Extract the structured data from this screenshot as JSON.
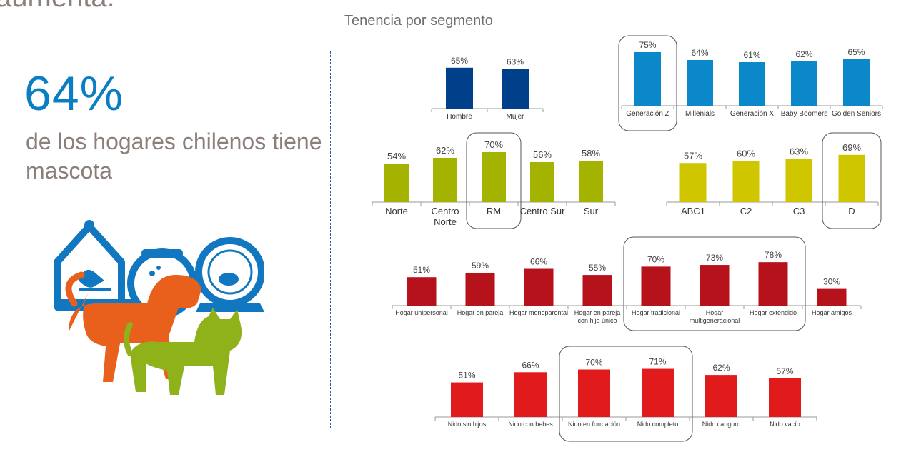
{
  "left_panel": {
    "header_fragment": "aumenta.",
    "stat_value": "64%",
    "stat_caption": "de los hogares chilenos tiene mascota",
    "illustration": "pets-illustration"
  },
  "chart_title": "Tenencia por segmento",
  "colors": {
    "gender": "#003f8a",
    "generation": "#0a88c9",
    "region": "#a4b300",
    "socioeconomic": "#cfc600",
    "household": "#b5121b",
    "nest": "#e11b1b",
    "highlight_border": "#555555"
  },
  "chart_data": [
    {
      "type": "bar",
      "id": "gender",
      "categories": [
        "Hombre",
        "Mujer"
      ],
      "values": [
        65,
        63
      ],
      "labels": [
        "65%",
        "63%"
      ],
      "highlight": []
    },
    {
      "type": "bar",
      "id": "generation",
      "categories": [
        "Generación Z",
        "Millenials",
        "Generación X",
        "Baby Boomers",
        "Golden Seniors"
      ],
      "values": [
        75,
        64,
        61,
        62,
        65
      ],
      "labels": [
        "75%",
        "64%",
        "61%",
        "62%",
        "65%"
      ],
      "highlight": [
        0
      ]
    },
    {
      "type": "bar",
      "id": "region",
      "categories": [
        "Norte",
        "Centro Norte",
        "RM",
        "Centro Sur",
        "Sur"
      ],
      "values": [
        54,
        62,
        70,
        56,
        58
      ],
      "labels": [
        "54%",
        "62%",
        "70%",
        "56%",
        "58%"
      ],
      "highlight": [
        2
      ]
    },
    {
      "type": "bar",
      "id": "socioeconomic",
      "categories": [
        "ABC1",
        "C2",
        "C3",
        "D"
      ],
      "values": [
        57,
        60,
        63,
        69
      ],
      "labels": [
        "57%",
        "60%",
        "63%",
        "69%"
      ],
      "highlight": [
        3
      ]
    },
    {
      "type": "bar",
      "id": "household",
      "categories": [
        "Hogar unipersonal",
        "Hogar en pareja",
        "Hogar monoparental",
        "Hogar en pareja con hijo único",
        "Hogar tradicional",
        "Hogar multigeneracional",
        "Hogar extendido",
        "Hogar amigos"
      ],
      "values": [
        51,
        59,
        66,
        55,
        70,
        73,
        78,
        30
      ],
      "labels": [
        "51%",
        "59%",
        "66%",
        "55%",
        "70%",
        "73%",
        "78%",
        "30%"
      ],
      "highlight": [
        4,
        5,
        6
      ]
    },
    {
      "type": "bar",
      "id": "nest",
      "categories": [
        "Nido sin hijos",
        "Nido con bebes",
        "Nido en formación",
        "Nido completo",
        "Nido canguro",
        "Nido vacío"
      ],
      "values": [
        51,
        66,
        70,
        71,
        62,
        57
      ],
      "labels": [
        "51%",
        "66%",
        "70%",
        "71%",
        "62%",
        "57%"
      ],
      "highlight": [
        2,
        3
      ]
    }
  ]
}
